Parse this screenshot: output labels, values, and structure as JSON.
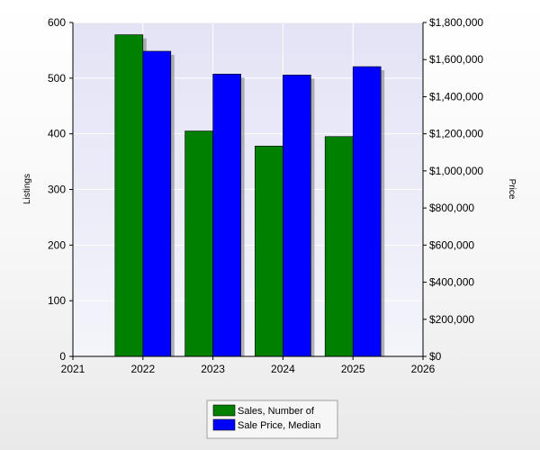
{
  "chart_data": {
    "type": "bar",
    "x_ticks": [
      "2021",
      "2022",
      "2023",
      "2024",
      "2025",
      "2026"
    ],
    "categories": [
      "2022",
      "2023",
      "2024",
      "2025"
    ],
    "series": [
      {
        "name": "Sales, Number of",
        "axis": "left",
        "color": "#008000",
        "values": [
          578,
          405,
          378,
          395
        ]
      },
      {
        "name": "Sale Price, Median",
        "axis": "right",
        "color": "#0000ff",
        "values": [
          1645000,
          1522000,
          1517000,
          1562000
        ]
      }
    ],
    "ylabel": "Listings",
    "ylabel_right": "Price",
    "ylim": [
      0,
      600
    ],
    "ylim_right": [
      0,
      1800000
    ],
    "y_ticks": [
      "0",
      "100",
      "200",
      "300",
      "400",
      "500",
      "600"
    ],
    "y_ticks_right": [
      "$0",
      "$200,000",
      "$400,000",
      "$600,000",
      "$800,000",
      "$1,000,000",
      "$1,200,000",
      "$1,400,000",
      "$1,600,000",
      "$1,800,000"
    ],
    "plot_background": "#e8e8f8",
    "grid": true,
    "legend_position": "bottom-center"
  }
}
